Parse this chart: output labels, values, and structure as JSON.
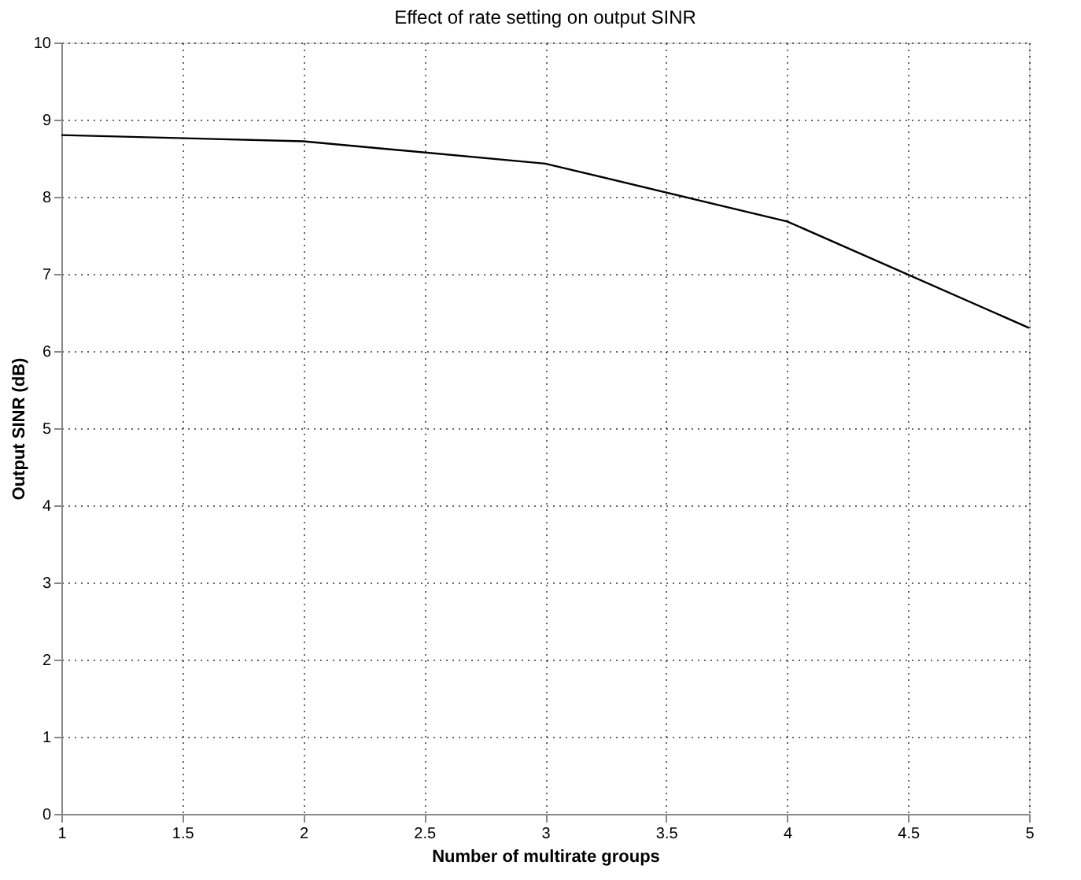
{
  "chart_data": {
    "type": "line",
    "title": "Effect of rate setting on output SINR",
    "xlabel": "Number of multirate groups",
    "ylabel": "Output SINR (dB)",
    "x": [
      1,
      2,
      3,
      4,
      5
    ],
    "series": [
      {
        "color": "#000000",
        "values": [
          8.8,
          8.72,
          8.43,
          7.68,
          6.3
        ]
      }
    ],
    "xlim": [
      1,
      5
    ],
    "xticks": [
      1,
      1.5,
      2,
      2.5,
      3,
      3.5,
      4,
      4.5,
      5
    ],
    "ylim": [
      0,
      10
    ],
    "yticks": [
      0,
      1,
      2,
      3,
      4,
      5,
      6,
      7,
      8,
      9,
      10
    ],
    "grid": true,
    "line_style": "solid",
    "marker": "none"
  }
}
